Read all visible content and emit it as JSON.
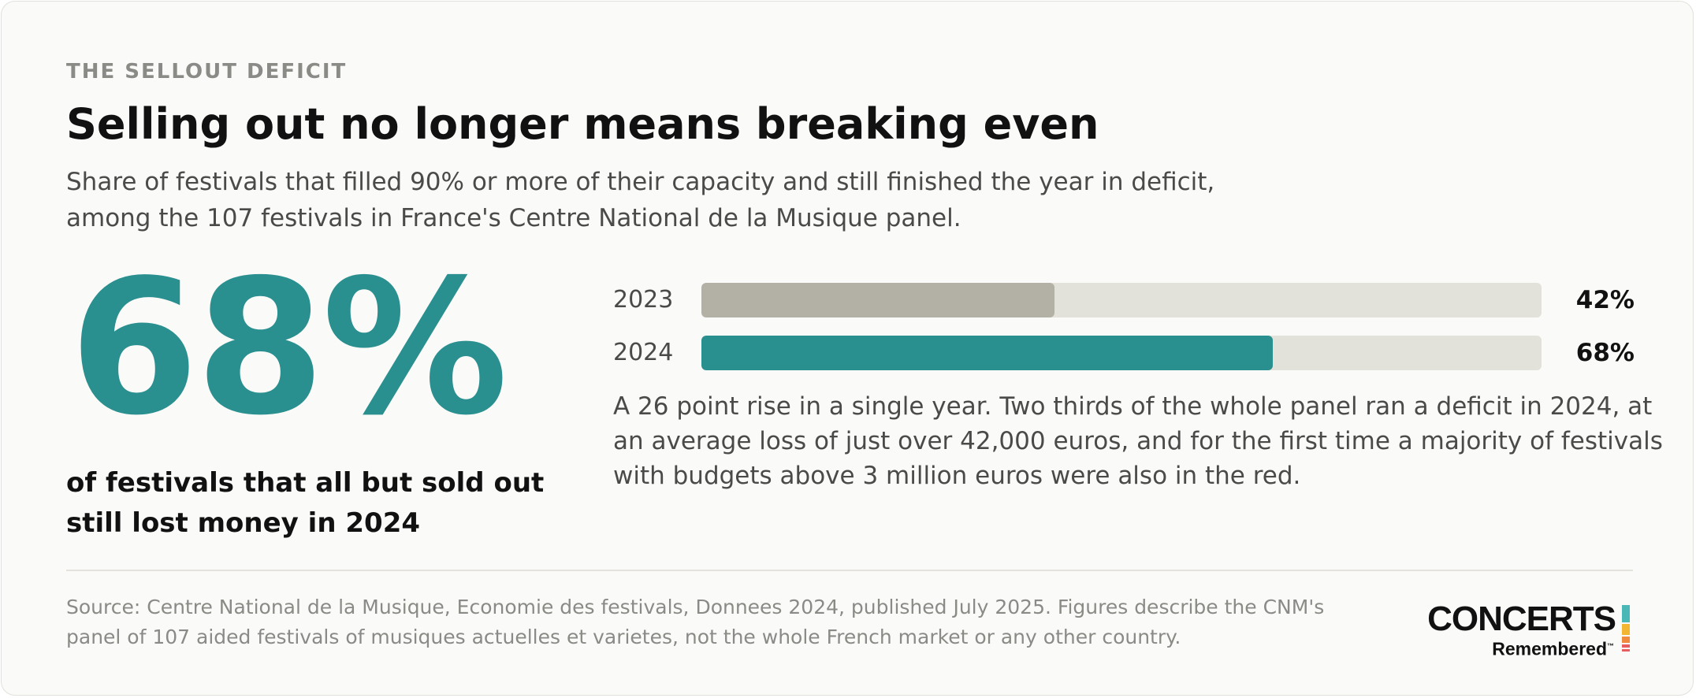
{
  "eyebrow": "THE SELLOUT DEFICIT",
  "title": "Selling out no longer means breaking even",
  "subtitle_lines": [
    "Share of festivals that filled 90% or more of their capacity and still finished the year in deficit,",
    "among the 107 festivals in France's Centre National de la Musique panel."
  ],
  "highlight": {
    "value": "68%",
    "caption_lines": [
      "of festivals that all but sold out",
      "still lost money in 2024"
    ]
  },
  "chart_data": {
    "type": "bar",
    "orientation": "horizontal",
    "categories": [
      "2023",
      "2024"
    ],
    "values": [
      42,
      68
    ],
    "value_labels": [
      "42%",
      "68%"
    ],
    "unit": "%",
    "xlim": [
      0,
      100
    ],
    "bar_colors": [
      "#b3b0a5",
      "#2a8f8f"
    ],
    "track_color": "#e2e1da",
    "grid": false
  },
  "note_lines": [
    "A 26 point rise in a single year. Two thirds of the whole panel ran a deficit in 2024, at",
    "an average loss of just over 42,000 euros, and for the first time a majority of festivals",
    "with budgets above 3 million euros were also in the red."
  ],
  "source_lines": [
    "Source: Centre National de la Musique, Economie des festivals, Donnees 2024, published July 2025. Figures describe the CNM's",
    "panel of 107 aided festivals of musiques actuelles et varietes, not the whole French market or any other country."
  ],
  "logo": {
    "word": "CONCERTS",
    "sub": "Remembered",
    "tm": "™",
    "stripe_colors": [
      "#4bb8b8",
      "#f2b632",
      "#f08a3c",
      "#e85d5d"
    ]
  },
  "colors": {
    "accent": "#2a8f8f",
    "muted_bar": "#b3b0a5",
    "background": "#fafaf8"
  }
}
